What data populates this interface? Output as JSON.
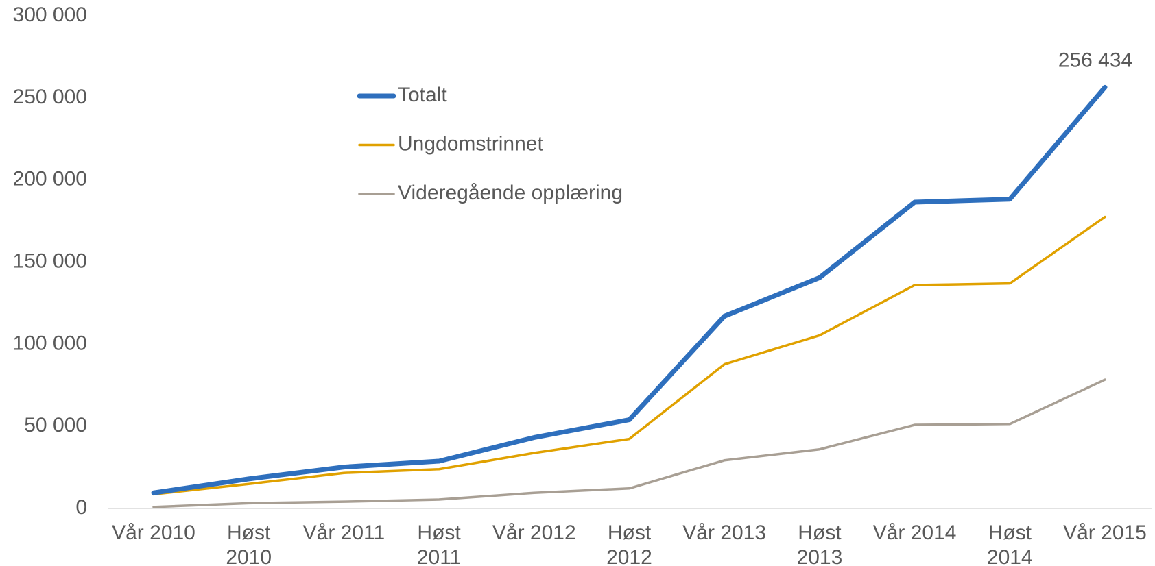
{
  "chart_data": {
    "type": "line",
    "categories": [
      "Vår 2010",
      "Høst\n2010",
      "Vår 2011",
      "Høst\n2011",
      "Vår 2012",
      "Høst\n2012",
      "Vår 2013",
      "Høst\n2013",
      "Vår 2014",
      "Høst\n2014",
      "Vår 2015"
    ],
    "series": [
      {
        "name": "Totalt",
        "color": "#2e6fbd",
        "values": [
          9500,
          18000,
          25200,
          28800,
          43200,
          54000,
          117100,
          140500,
          186500,
          188300,
          256434
        ],
        "value_labels": [
          null,
          null,
          null,
          null,
          null,
          null,
          null,
          null,
          null,
          null,
          "256 434"
        ]
      },
      {
        "name": "Ungdomstrinnet",
        "color": "#e0a100",
        "values": [
          8600,
          14900,
          21600,
          23900,
          33800,
          42300,
          87800,
          105400,
          136000,
          137000,
          177500
        ]
      },
      {
        "name": "Videregående opplæring",
        "color": "#a89f94",
        "values": [
          900,
          3200,
          4100,
          5400,
          9500,
          12200,
          29300,
          36000,
          50900,
          51400,
          78400
        ]
      }
    ],
    "ylim": [
      0,
      300000
    ],
    "yticks": [
      0,
      {
        "value": 50000,
        "label": "50 000"
      },
      {
        "value": 100000,
        "label": "100 000"
      },
      {
        "value": 150000,
        "label": "150 000"
      },
      {
        "value": 200000,
        "label": "200 000"
      },
      {
        "value": 250000,
        "label": "250 000"
      },
      {
        "value": 300000,
        "label": "300 000"
      }
    ],
    "grid": false,
    "legend": "top"
  }
}
